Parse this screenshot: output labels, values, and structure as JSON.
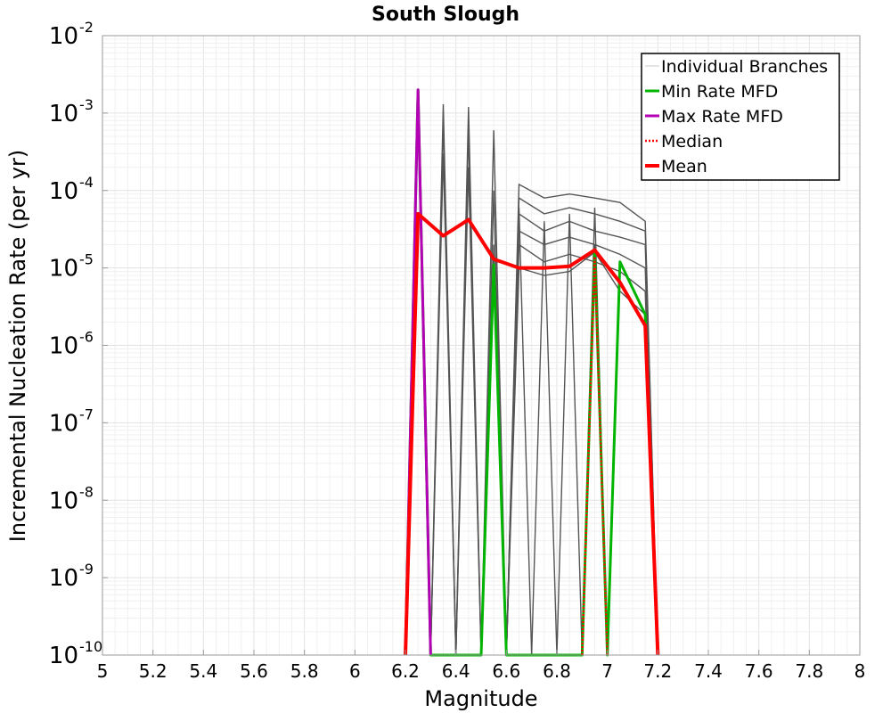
{
  "chart_data": {
    "type": "line",
    "title": "South Slough",
    "xlabel": "Magnitude",
    "ylabel": "Incremental Nucleation Rate (per yr)",
    "xlim": [
      5,
      8
    ],
    "ylim": [
      1e-10,
      0.01
    ],
    "yscale": "log",
    "grid": true,
    "legend_position": "top-right",
    "x_ticks": [
      "5",
      "5.2",
      "5.4",
      "5.6",
      "5.8",
      "6",
      "6.2",
      "6.4",
      "6.6",
      "6.8",
      "7",
      "7.2",
      "7.4",
      "7.6",
      "7.8",
      "8"
    ],
    "y_ticks": [
      {
        "base": "10",
        "exp": "-2"
      },
      {
        "base": "10",
        "exp": "-3"
      },
      {
        "base": "10",
        "exp": "-4"
      },
      {
        "base": "10",
        "exp": "-5"
      },
      {
        "base": "10",
        "exp": "-6"
      },
      {
        "base": "10",
        "exp": "-7"
      },
      {
        "base": "10",
        "exp": "-8"
      },
      {
        "base": "10",
        "exp": "-9"
      },
      {
        "base": "10",
        "exp": "-10"
      }
    ],
    "legend": [
      {
        "label": "Individual Branches",
        "color": "#c8c8c8",
        "style": "thin"
      },
      {
        "label": "Min Rate MFD",
        "color": "#00b400",
        "style": "solid"
      },
      {
        "label": "Max Rate MFD",
        "color": "#b400b4",
        "style": "solid"
      },
      {
        "label": "Median",
        "color": "#ff0000",
        "style": "dotted"
      },
      {
        "label": "Mean",
        "color": "#ff0000",
        "style": "thick"
      }
    ],
    "series": [
      {
        "name": "Min Rate MFD",
        "color": "#00b400",
        "x": [
          6.2,
          6.25,
          6.3,
          6.5,
          6.55,
          6.6,
          6.9,
          6.95,
          7.0,
          7.05,
          7.15,
          7.2
        ],
        "y": [
          1e-10,
          0.002,
          1e-10,
          1e-10,
          1.1e-05,
          1e-10,
          1e-10,
          1.6e-05,
          1e-10,
          1.2e-05,
          2.5e-06,
          1e-10
        ]
      },
      {
        "name": "Max Rate MFD",
        "color": "#b400b4",
        "x": [
          6.2,
          6.25,
          6.3
        ],
        "y": [
          1e-10,
          0.002,
          1e-10
        ]
      },
      {
        "name": "Median",
        "color": "#ff0000",
        "x": [
          6.9,
          6.95,
          7.0
        ],
        "y": [
          1e-10,
          1.4e-05,
          1e-10
        ]
      },
      {
        "name": "Mean",
        "color": "#ff0000",
        "x": [
          6.2,
          6.25,
          6.35,
          6.45,
          6.55,
          6.65,
          6.75,
          6.85,
          6.95,
          7.05,
          7.15,
          7.2
        ],
        "y": [
          1e-10,
          5e-05,
          2.6e-05,
          4.2e-05,
          1.3e-05,
          1e-05,
          1e-05,
          1.05e-05,
          1.7e-05,
          6.5e-06,
          1.8e-06,
          1e-10
        ]
      }
    ],
    "branches": [
      {
        "x": [
          6.2,
          6.25,
          6.3
        ],
        "y": [
          1e-10,
          0.0018,
          1e-10
        ]
      },
      {
        "x": [
          6.2,
          6.25,
          6.3
        ],
        "y": [
          1e-10,
          0.0015,
          1e-10
        ]
      },
      {
        "x": [
          6.3,
          6.35,
          6.4
        ],
        "y": [
          1e-10,
          0.0013,
          1e-10
        ]
      },
      {
        "x": [
          6.3,
          6.35,
          6.4
        ],
        "y": [
          1e-10,
          0.0008,
          1e-10
        ]
      },
      {
        "x": [
          6.3,
          6.35,
          6.4
        ],
        "y": [
          1e-10,
          0.0003,
          1e-10
        ]
      },
      {
        "x": [
          6.4,
          6.45,
          6.5
        ],
        "y": [
          1e-10,
          0.0012,
          1e-10
        ]
      },
      {
        "x": [
          6.4,
          6.45,
          6.5
        ],
        "y": [
          1e-10,
          0.0006,
          1e-10
        ]
      },
      {
        "x": [
          6.4,
          6.45,
          6.5
        ],
        "y": [
          1e-10,
          0.0002,
          1e-10
        ]
      },
      {
        "x": [
          6.5,
          6.55,
          6.6
        ],
        "y": [
          1e-10,
          0.0006,
          1e-10
        ]
      },
      {
        "x": [
          6.5,
          6.55,
          6.6
        ],
        "y": [
          1e-10,
          0.0001,
          1e-10
        ]
      },
      {
        "x": [
          6.5,
          6.55,
          6.6
        ],
        "y": [
          1e-10,
          2e-05,
          1e-10
        ]
      },
      {
        "x": [
          6.6,
          6.65,
          6.75,
          6.85,
          6.95,
          7.05,
          7.15,
          7.2
        ],
        "y": [
          1e-10,
          0.00012,
          8e-05,
          9e-05,
          8e-05,
          7e-05,
          4e-05,
          1e-10
        ]
      },
      {
        "x": [
          6.6,
          6.65,
          6.75,
          6.85,
          6.95,
          7.05,
          7.15,
          7.2
        ],
        "y": [
          1e-10,
          8e-05,
          5e-05,
          6e-05,
          5e-05,
          4e-05,
          3e-05,
          1e-10
        ]
      },
      {
        "x": [
          6.6,
          6.65,
          6.75,
          6.85,
          6.95,
          7.05,
          7.15,
          7.2
        ],
        "y": [
          1e-10,
          5e-05,
          3e-05,
          4e-05,
          3e-05,
          2.5e-05,
          2e-05,
          1e-10
        ]
      },
      {
        "x": [
          6.6,
          6.65,
          6.75,
          6.85,
          6.95,
          7.05,
          7.15,
          7.2
        ],
        "y": [
          1e-10,
          3e-05,
          2e-05,
          2.5e-05,
          2e-05,
          1.5e-05,
          1e-05,
          1e-10
        ]
      },
      {
        "x": [
          6.6,
          6.65,
          6.75,
          6.85,
          6.95,
          7.05,
          7.15,
          7.2
        ],
        "y": [
          1e-10,
          2e-05,
          1.2e-05,
          1.5e-05,
          1.2e-05,
          9e-06,
          5e-06,
          1e-10
        ]
      },
      {
        "x": [
          6.6,
          6.65,
          6.75,
          6.85,
          6.95,
          7.05,
          7.15,
          7.2
        ],
        "y": [
          1e-10,
          1e-05,
          8e-06,
          9e-06,
          1.6e-05,
          5e-06,
          2.5e-06,
          1e-10
        ]
      },
      {
        "x": [
          6.6,
          6.65,
          6.7
        ],
        "y": [
          1e-10,
          6e-05,
          1e-10
        ]
      },
      {
        "x": [
          6.7,
          6.75,
          6.8
        ],
        "y": [
          1e-10,
          4e-05,
          1e-10
        ]
      },
      {
        "x": [
          6.8,
          6.85,
          6.9
        ],
        "y": [
          1e-10,
          5e-05,
          1e-10
        ]
      },
      {
        "x": [
          6.9,
          6.95,
          7.0
        ],
        "y": [
          1e-10,
          6e-05,
          1e-10
        ]
      },
      {
        "x": [
          6.9,
          6.95,
          7.0
        ],
        "y": [
          1e-10,
          2e-05,
          1e-10
        ]
      }
    ]
  }
}
